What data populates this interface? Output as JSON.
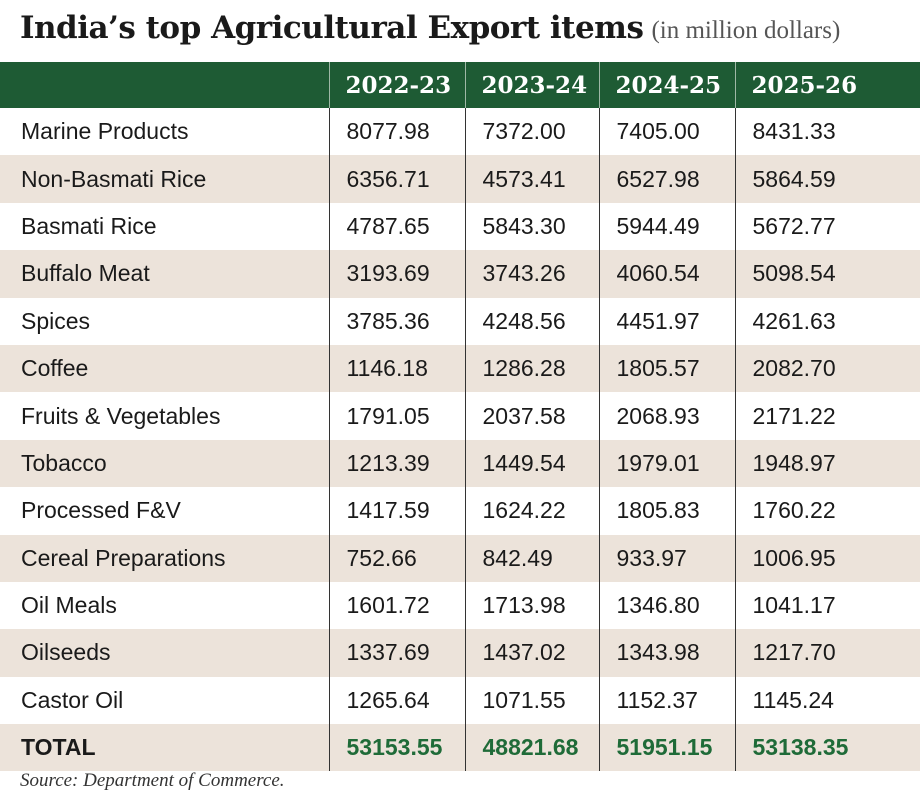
{
  "chart_data": {
    "type": "table",
    "title": "India’s top Agricultural Export items",
    "subtitle": "(in million dollars)",
    "columns": [
      "",
      "2022-23",
      "2023-24",
      "2024-25",
      "2025-26"
    ],
    "rows": [
      {
        "label": "Marine Products",
        "values": [
          "8077.98",
          "7372.00",
          "7405.00",
          "8431.33"
        ]
      },
      {
        "label": "Non-Basmati Rice",
        "values": [
          "6356.71",
          "4573.41",
          "6527.98",
          "5864.59"
        ]
      },
      {
        "label": "Basmati Rice",
        "values": [
          "4787.65",
          "5843.30",
          "5944.49",
          "5672.77"
        ]
      },
      {
        "label": "Buffalo Meat",
        "values": [
          "3193.69",
          "3743.26",
          "4060.54",
          "5098.54"
        ]
      },
      {
        "label": "Spices",
        "values": [
          "3785.36",
          "4248.56",
          "4451.97",
          "4261.63"
        ]
      },
      {
        "label": "Coffee",
        "values": [
          "1146.18",
          "1286.28",
          "1805.57",
          "2082.70"
        ]
      },
      {
        "label": "Fruits & Vegetables",
        "values": [
          "1791.05",
          "2037.58",
          "2068.93",
          "2171.22"
        ]
      },
      {
        "label": "Tobacco",
        "values": [
          "1213.39",
          "1449.54",
          "1979.01",
          "1948.97"
        ]
      },
      {
        "label": "Processed F&V",
        "values": [
          "1417.59",
          "1624.22",
          "1805.83",
          "1760.22"
        ]
      },
      {
        "label": "Cereal Preparations",
        "values": [
          "752.66",
          "842.49",
          "933.97",
          "1006.95"
        ]
      },
      {
        "label": "Oil Meals",
        "values": [
          "1601.72",
          "1713.98",
          "1346.80",
          "1041.17"
        ]
      },
      {
        "label": "Oilseeds",
        "values": [
          "1337.69",
          "1437.02",
          "1343.98",
          "1217.70"
        ]
      },
      {
        "label": "Castor Oil",
        "values": [
          "1265.64",
          "1071.55",
          "1152.37",
          "1145.24"
        ]
      }
    ],
    "total": {
      "label": "TOTAL",
      "values": [
        "53153.55",
        "48821.68",
        "51951.15",
        "53138.35"
      ]
    },
    "source": "Source: Department of Commerce.",
    "colors": {
      "header_bg": "#1e5b34",
      "stripe": "#ece3da",
      "total_text": "#1f6b38"
    }
  }
}
